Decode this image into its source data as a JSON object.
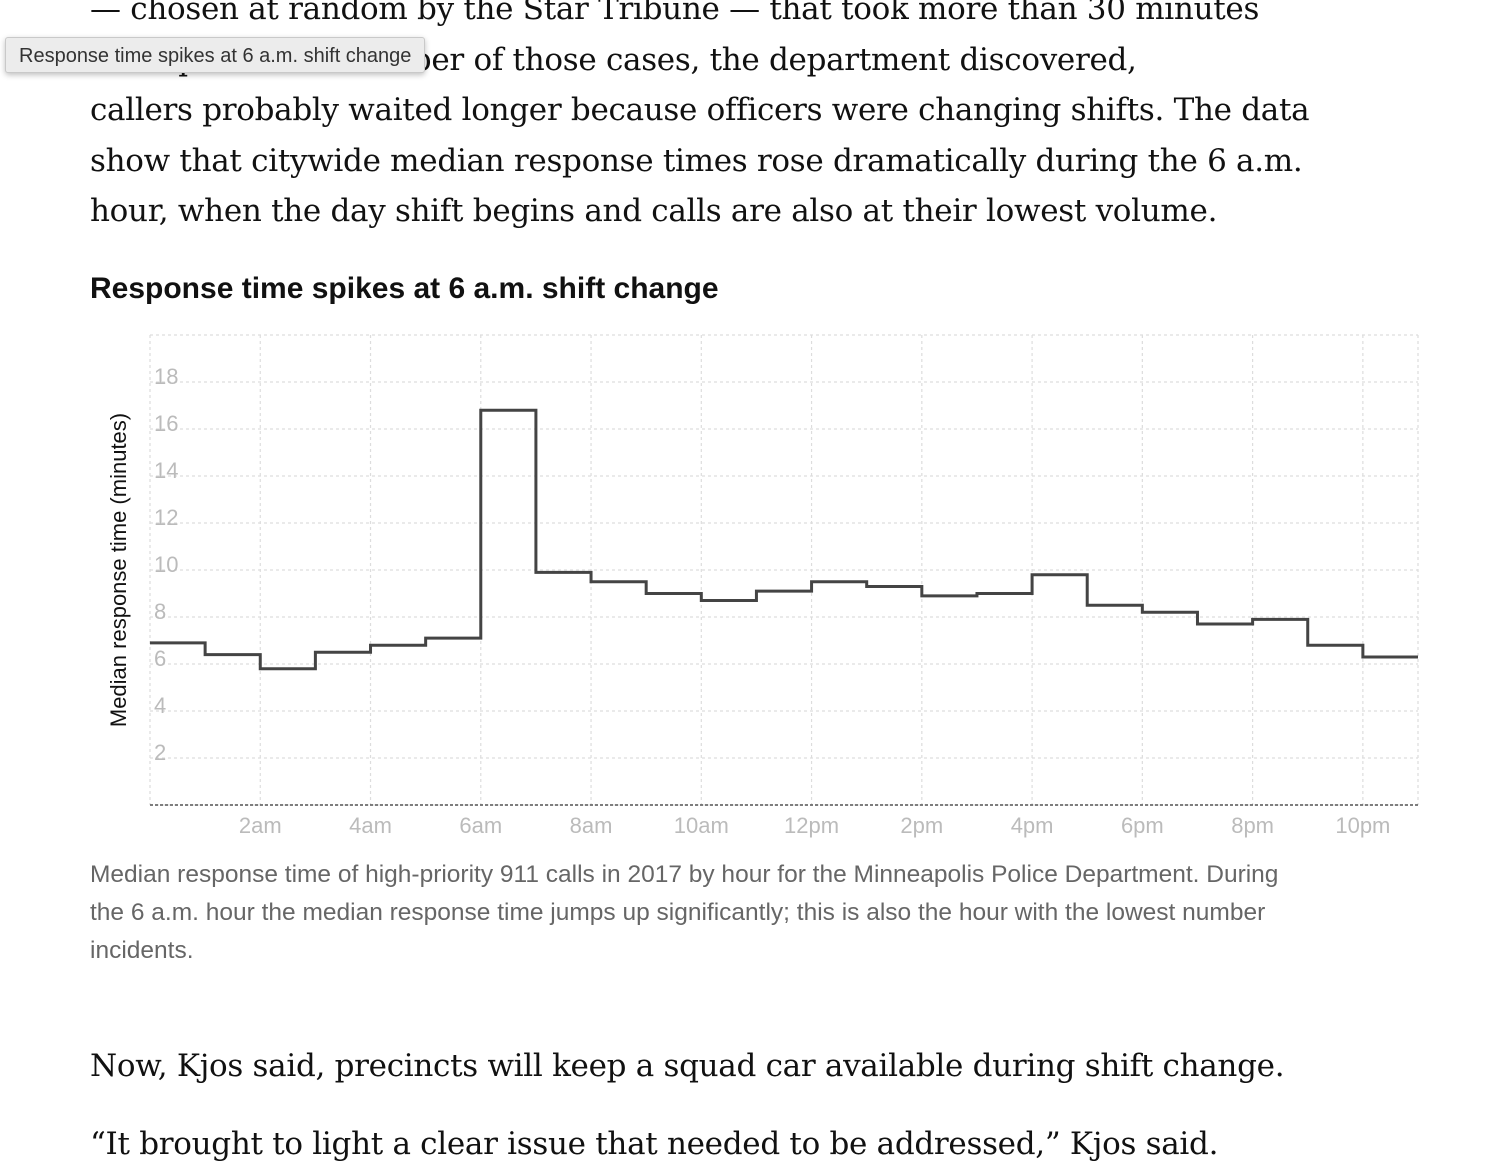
{
  "article": {
    "para1_lines": [
      "— chosen at random by the Star Tribune — that took more than 30 minutes",
      "to respond. In a number of those cases, the department discovered,",
      "callers probably waited longer because officers were changing shifts. The data",
      "show that citywide median response times rose dramatically during the 6 a.m.",
      "hour, when the day shift begins and calls are also at their lowest volume."
    ],
    "para2": "Now, Kjos said, precincts will keep a squad car available during shift change.",
    "para3": "“It brought to light a clear issue that needed to be addressed,” Kjos said."
  },
  "tooltip": "Response time spikes at 6 a.m. shift change",
  "chart_data": {
    "type": "line",
    "step": true,
    "title": "Response time spikes at 6 a.m. shift change",
    "ylabel": "Median response time (minutes)",
    "xlabel": "",
    "x_tick_labels": [
      "2am",
      "4am",
      "6am",
      "8am",
      "10am",
      "12pm",
      "2pm",
      "4pm",
      "6pm",
      "8pm",
      "10pm"
    ],
    "x_tick_hours": [
      2,
      4,
      6,
      8,
      10,
      12,
      14,
      16,
      18,
      20,
      22
    ],
    "y_ticks": [
      2,
      4,
      6,
      8,
      10,
      12,
      14,
      16,
      18
    ],
    "xlim": [
      0,
      23
    ],
    "ylim": [
      0,
      20
    ],
    "grid": true,
    "hours": [
      0,
      1,
      2,
      3,
      4,
      5,
      6,
      7,
      8,
      9,
      10,
      11,
      12,
      13,
      14,
      15,
      16,
      17,
      18,
      19,
      20,
      21,
      22,
      23
    ],
    "values": [
      6.9,
      6.4,
      5.8,
      6.5,
      6.8,
      7.1,
      16.8,
      9.9,
      9.5,
      9.0,
      8.7,
      9.1,
      9.5,
      9.3,
      8.9,
      9.0,
      9.8,
      8.5,
      8.2,
      7.7,
      7.9,
      6.8,
      6.3,
      6.3
    ],
    "line_color": "#444444",
    "tick_color": "#bbbbbb",
    "grid_color": "#dddddd"
  },
  "caption_lines": [
    "Median response time of high-priority 911 calls in 2017 by hour for the Minneapolis Police Department. During",
    "the 6 a.m. hour the median response time jumps up significantly; this is also the hour with the lowest number",
    "incidents."
  ]
}
